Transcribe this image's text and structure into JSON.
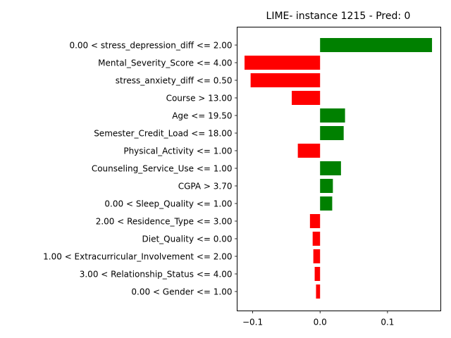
{
  "chart_data": {
    "type": "bar",
    "orientation": "horizontal",
    "title": "LIME- instance 1215 - Pred: 0",
    "xlabel": "",
    "ylabel": "",
    "categories": [
      "0.00 < stress_depression_diff <= 2.00",
      "Mental_Severity_Score <= 4.00",
      "stress_anxiety_diff <= 0.50",
      "Course > 13.00",
      "Age <= 19.50",
      "Semester_Credit_Load <= 18.00",
      "Physical_Activity <= 1.00",
      "Counseling_Service_Use <= 1.00",
      "CGPA > 3.70",
      "0.00 < Sleep_Quality <= 1.00",
      "2.00 < Residence_Type <= 3.00",
      "Diet_Quality <= 0.00",
      "1.00 < Extracurricular_Involvement <= 2.00",
      "3.00 < Relationship_Status <= 4.00",
      "0.00 < Gender <= 1.00"
    ],
    "values": [
      0.166,
      -0.112,
      -0.103,
      -0.042,
      0.037,
      0.035,
      -0.033,
      0.031,
      0.019,
      0.018,
      -0.015,
      -0.011,
      -0.01,
      -0.008,
      -0.006
    ],
    "xlim": [
      -0.123,
      0.179
    ],
    "xticks": [
      -0.1,
      0.0,
      0.1
    ],
    "xtick_labels": [
      "−0.1",
      "0.0",
      "0.1"
    ],
    "grid": false,
    "legend": "none",
    "colors": {
      "positive": "#008000",
      "negative": "#ff0000",
      "axis": "#000000"
    }
  }
}
